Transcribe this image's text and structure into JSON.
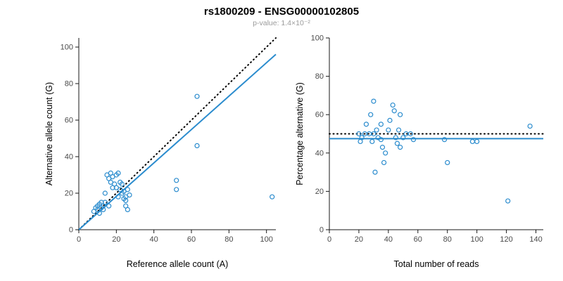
{
  "header": {
    "title": "rs1800209 - ENSG00000102805",
    "subtitle": "p-value: 1.4×10⁻²"
  },
  "colors": {
    "accent_blue": "#2b8cce",
    "identity_black": "#000000",
    "subtitle_gray": "#9b9b9b"
  },
  "chart_data": [
    {
      "type": "scatter",
      "name": "allele-counts",
      "xlabel": "Reference allele count (A)",
      "ylabel": "Alternative allele count (G)",
      "xlim": [
        0,
        105
      ],
      "ylim": [
        0,
        105
      ],
      "xticks": [
        0,
        20,
        40,
        60,
        80,
        100
      ],
      "yticks": [
        0,
        20,
        40,
        60,
        80,
        100
      ],
      "grid": false,
      "point_color": "#2b8cce",
      "points": [
        [
          8,
          10
        ],
        [
          9,
          12
        ],
        [
          10,
          11
        ],
        [
          10,
          13
        ],
        [
          11,
          9
        ],
        [
          11,
          14
        ],
        [
          12,
          12
        ],
        [
          12,
          15
        ],
        [
          13,
          13
        ],
        [
          13,
          11
        ],
        [
          14,
          15
        ],
        [
          14,
          20
        ],
        [
          15,
          30
        ],
        [
          16,
          28
        ],
        [
          16,
          13
        ],
        [
          17,
          31
        ],
        [
          17,
          26
        ],
        [
          18,
          29
        ],
        [
          18,
          23
        ],
        [
          19,
          25
        ],
        [
          20,
          30
        ],
        [
          20,
          23
        ],
        [
          21,
          31
        ],
        [
          21,
          18
        ],
        [
          22,
          26
        ],
        [
          22,
          22
        ],
        [
          23,
          20
        ],
        [
          23,
          25
        ],
        [
          24,
          17
        ],
        [
          24,
          21
        ],
        [
          25,
          13
        ],
        [
          25,
          16
        ],
        [
          25,
          18
        ],
        [
          26,
          11
        ],
        [
          26,
          22
        ],
        [
          27,
          19
        ],
        [
          52,
          27
        ],
        [
          52,
          22
        ],
        [
          63,
          73
        ],
        [
          63,
          46
        ],
        [
          103,
          18
        ]
      ],
      "lines": [
        {
          "name": "identity",
          "style": "dotted",
          "color": "#000000",
          "x": [
            0,
            105
          ],
          "y": [
            0,
            105
          ]
        },
        {
          "name": "fit",
          "style": "solid",
          "color": "#2b8cce",
          "x": [
            0,
            105
          ],
          "y": [
            0,
            96
          ]
        }
      ]
    },
    {
      "type": "scatter",
      "name": "percentage-alternative",
      "xlabel": "Total number of reads",
      "ylabel": "Percentage alternative (G)",
      "xlim": [
        0,
        145
      ],
      "ylim": [
        0,
        100
      ],
      "xticks": [
        0,
        20,
        40,
        60,
        80,
        100,
        120,
        140
      ],
      "yticks": [
        0,
        20,
        40,
        60,
        80,
        100
      ],
      "grid": false,
      "point_color": "#2b8cce",
      "points": [
        [
          20,
          50
        ],
        [
          21,
          46
        ],
        [
          22,
          48
        ],
        [
          24,
          50
        ],
        [
          25,
          55
        ],
        [
          27,
          50
        ],
        [
          28,
          60
        ],
        [
          29,
          46
        ],
        [
          30,
          67
        ],
        [
          30,
          50
        ],
        [
          31,
          30
        ],
        [
          32,
          52
        ],
        [
          33,
          48
        ],
        [
          35,
          55
        ],
        [
          35,
          47
        ],
        [
          36,
          43
        ],
        [
          37,
          35
        ],
        [
          38,
          40
        ],
        [
          40,
          52
        ],
        [
          41,
          57
        ],
        [
          43,
          65
        ],
        [
          44,
          62
        ],
        [
          45,
          48
        ],
        [
          46,
          45
        ],
        [
          47,
          52
        ],
        [
          48,
          60
        ],
        [
          48,
          43
        ],
        [
          50,
          48
        ],
        [
          52,
          50
        ],
        [
          55,
          50
        ],
        [
          57,
          47
        ],
        [
          78,
          47
        ],
        [
          80,
          35
        ],
        [
          97,
          46
        ],
        [
          100,
          46
        ],
        [
          121,
          15
        ],
        [
          136,
          54
        ]
      ],
      "lines": [
        {
          "name": "expected-50pct",
          "style": "dotted",
          "color": "#000000",
          "x": [
            0,
            145
          ],
          "y": [
            50,
            50
          ]
        },
        {
          "name": "fit",
          "style": "solid",
          "color": "#2b8cce",
          "x": [
            0,
            145
          ],
          "y": [
            47.5,
            47.5
          ]
        }
      ]
    }
  ]
}
